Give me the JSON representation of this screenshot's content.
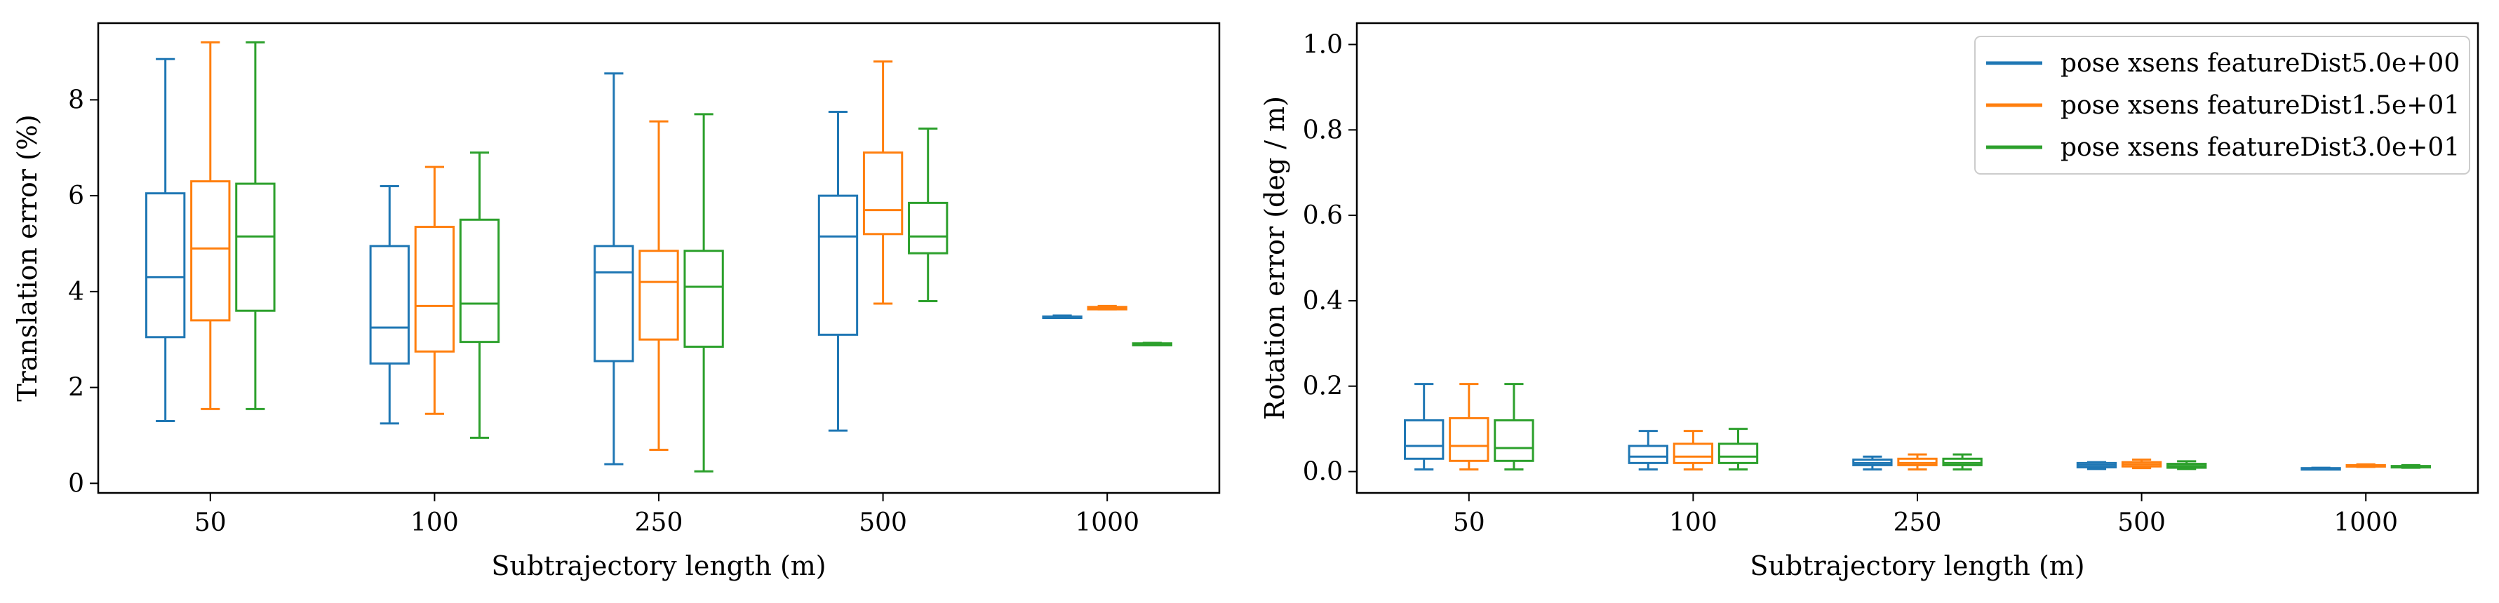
{
  "chart_data": [
    {
      "type": "box",
      "xlabel": "Subtrajectory length (m)",
      "ylabel": "Translation error (%)",
      "categories": [
        "50",
        "100",
        "250",
        "500",
        "1000"
      ],
      "ylim": [
        -0.2,
        9.6
      ],
      "yticks": [
        0,
        2,
        4,
        6,
        8
      ],
      "grid": false,
      "series": [
        {
          "name": "pose xsens featureDist5.0e+00",
          "color": "#1f77b4",
          "boxes": [
            {
              "whislo": 1.3,
              "q1": 3.05,
              "med": 4.3,
              "q3": 6.05,
              "whishi": 8.85
            },
            {
              "whislo": 1.25,
              "q1": 2.5,
              "med": 3.25,
              "q3": 4.95,
              "whishi": 6.2
            },
            {
              "whislo": 0.4,
              "q1": 2.55,
              "med": 4.4,
              "q3": 4.95,
              "whishi": 8.55
            },
            {
              "whislo": 1.1,
              "q1": 3.1,
              "med": 5.15,
              "q3": 6.0,
              "whishi": 7.75
            },
            {
              "whislo": 3.45,
              "q1": 3.45,
              "med": 3.45,
              "q3": 3.48,
              "whishi": 3.5
            }
          ]
        },
        {
          "name": "pose xsens featureDist1.5e+01",
          "color": "#ff7f0e",
          "boxes": [
            {
              "whislo": 1.55,
              "q1": 3.4,
              "med": 4.9,
              "q3": 6.3,
              "whishi": 9.2
            },
            {
              "whislo": 1.45,
              "q1": 2.75,
              "med": 3.7,
              "q3": 5.35,
              "whishi": 6.6
            },
            {
              "whislo": 0.7,
              "q1": 3.0,
              "med": 4.2,
              "q3": 4.85,
              "whishi": 7.55
            },
            {
              "whislo": 3.75,
              "q1": 5.2,
              "med": 5.7,
              "q3": 6.9,
              "whishi": 8.8
            },
            {
              "whislo": 3.63,
              "q1": 3.63,
              "med": 3.66,
              "q3": 3.68,
              "whishi": 3.7
            }
          ]
        },
        {
          "name": "pose xsens featureDist3.0e+01",
          "color": "#2ca02c",
          "boxes": [
            {
              "whislo": 1.55,
              "q1": 3.6,
              "med": 5.15,
              "q3": 6.25,
              "whishi": 9.2
            },
            {
              "whislo": 0.95,
              "q1": 2.95,
              "med": 3.75,
              "q3": 5.5,
              "whishi": 6.9
            },
            {
              "whislo": 0.25,
              "q1": 2.85,
              "med": 4.1,
              "q3": 4.85,
              "whishi": 7.7
            },
            {
              "whislo": 3.8,
              "q1": 4.8,
              "med": 5.15,
              "q3": 5.85,
              "whishi": 7.4
            },
            {
              "whislo": 2.88,
              "q1": 2.88,
              "med": 2.9,
              "q3": 2.92,
              "whishi": 2.93
            }
          ]
        }
      ]
    },
    {
      "type": "box",
      "xlabel": "Subtrajectory length (m)",
      "ylabel": "Rotation error (deg / m)",
      "categories": [
        "50",
        "100",
        "250",
        "500",
        "1000"
      ],
      "ylim": [
        -0.05,
        1.05
      ],
      "yticks": [
        "0.0",
        "0.2",
        "0.4",
        "0.6",
        "0.8",
        "1.0"
      ],
      "grid": false,
      "legend_position": "top-right",
      "series": [
        {
          "name": "pose xsens featureDist5.0e+00",
          "color": "#1f77b4",
          "boxes": [
            {
              "whislo": 0.005,
              "q1": 0.03,
              "med": 0.06,
              "q3": 0.12,
              "whishi": 0.205
            },
            {
              "whislo": 0.005,
              "q1": 0.02,
              "med": 0.035,
              "q3": 0.06,
              "whishi": 0.095
            },
            {
              "whislo": 0.005,
              "q1": 0.015,
              "med": 0.02,
              "q3": 0.028,
              "whishi": 0.035
            },
            {
              "whislo": 0.006,
              "q1": 0.01,
              "med": 0.015,
              "q3": 0.02,
              "whishi": 0.022
            },
            {
              "whislo": 0.005,
              "q1": 0.006,
              "med": 0.007,
              "q3": 0.008,
              "whishi": 0.009
            }
          ]
        },
        {
          "name": "pose xsens featureDist1.5e+01",
          "color": "#ff7f0e",
          "boxes": [
            {
              "whislo": 0.005,
              "q1": 0.025,
              "med": 0.06,
              "q3": 0.125,
              "whishi": 0.205
            },
            {
              "whislo": 0.005,
              "q1": 0.02,
              "med": 0.035,
              "q3": 0.065,
              "whishi": 0.095
            },
            {
              "whislo": 0.005,
              "q1": 0.015,
              "med": 0.02,
              "q3": 0.03,
              "whishi": 0.04
            },
            {
              "whislo": 0.008,
              "q1": 0.012,
              "med": 0.017,
              "q3": 0.022,
              "whishi": 0.028
            },
            {
              "whislo": 0.011,
              "q1": 0.012,
              "med": 0.014,
              "q3": 0.015,
              "whishi": 0.017
            }
          ]
        },
        {
          "name": "pose xsens featureDist3.0e+01",
          "color": "#2ca02c",
          "boxes": [
            {
              "whislo": 0.005,
              "q1": 0.025,
              "med": 0.055,
              "q3": 0.12,
              "whishi": 0.205
            },
            {
              "whislo": 0.005,
              "q1": 0.02,
              "med": 0.035,
              "q3": 0.065,
              "whishi": 0.1
            },
            {
              "whislo": 0.005,
              "q1": 0.015,
              "med": 0.02,
              "q3": 0.03,
              "whishi": 0.04
            },
            {
              "whislo": 0.006,
              "q1": 0.009,
              "med": 0.013,
              "q3": 0.018,
              "whishi": 0.024
            },
            {
              "whislo": 0.009,
              "q1": 0.01,
              "med": 0.012,
              "q3": 0.013,
              "whishi": 0.015
            }
          ]
        }
      ]
    }
  ]
}
